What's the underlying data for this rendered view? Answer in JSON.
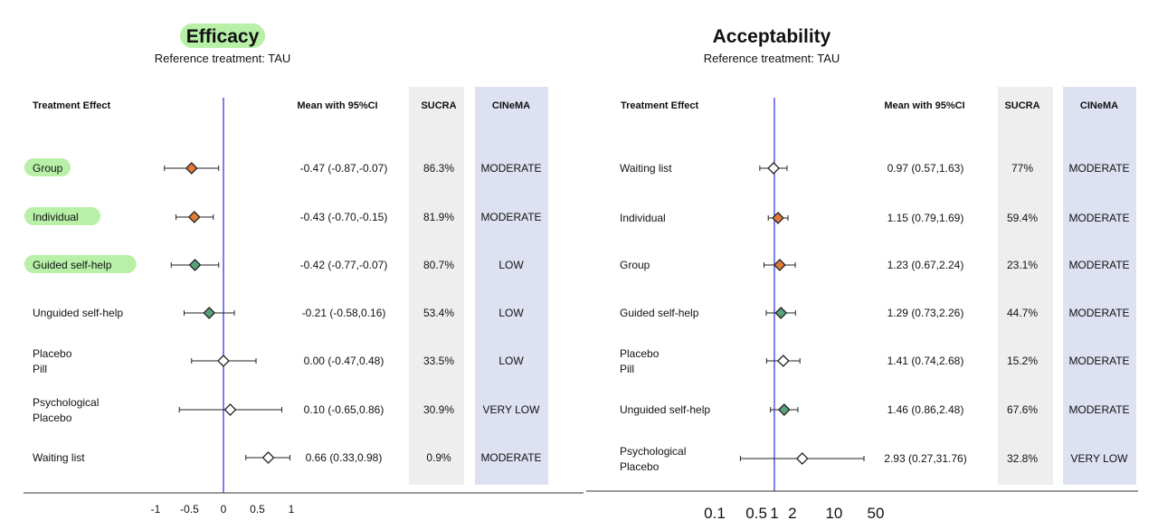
{
  "chart_data": [
    {
      "type": "forest",
      "title": "Efficacy",
      "subtitle": "Reference treatment: TAU",
      "headers": {
        "label": "Treatment Effect",
        "estimate": "Mean with 95%CI",
        "sucra": "SUCRA",
        "cinema": "CINeMA"
      },
      "scale": "linear",
      "xlim": [
        -1.2,
        1.0
      ],
      "ticks": [
        "-1",
        "-0.5",
        "0",
        "0.5",
        "1"
      ],
      "tick_values": [
        -1,
        -0.5,
        0,
        0.5,
        1
      ],
      "reference_line": 0,
      "rows": [
        {
          "label": [
            "Group"
          ],
          "highlight": true,
          "mean": -0.47,
          "lo": -0.87,
          "hi": -0.07,
          "text": "-0.47 (-0.87,-0.07)",
          "sucra": "86.3%",
          "cinema": "MODERATE",
          "color": "#e07b39"
        },
        {
          "label": [
            "Individual"
          ],
          "highlight": true,
          "mean": -0.43,
          "lo": -0.7,
          "hi": -0.15,
          "text": "-0.43 (-0.70,-0.15)",
          "sucra": "81.9%",
          "cinema": "MODERATE",
          "color": "#e07b39"
        },
        {
          "label": [
            "Guided self-help"
          ],
          "highlight": true,
          "mean": -0.42,
          "lo": -0.77,
          "hi": -0.07,
          "text": "-0.42 (-0.77,-0.07)",
          "sucra": "80.7%",
          "cinema": "LOW",
          "color": "#5aa37a"
        },
        {
          "label": [
            "Unguided self-help"
          ],
          "highlight": false,
          "mean": -0.21,
          "lo": -0.58,
          "hi": 0.16,
          "text": "-0.21 (-0.58,0.16)",
          "sucra": "53.4%",
          "cinema": "LOW",
          "color": "#5aa37a"
        },
        {
          "label": [
            "Placebo",
            "Pill"
          ],
          "highlight": false,
          "mean": 0.0,
          "lo": -0.47,
          "hi": 0.48,
          "text": "0.00 (-0.47,0.48)",
          "sucra": "33.5%",
          "cinema": "LOW",
          "color": "#ffffff"
        },
        {
          "label": [
            "Psychological",
            "Placebo"
          ],
          "highlight": false,
          "mean": 0.1,
          "lo": -0.65,
          "hi": 0.86,
          "text": "0.10 (-0.65,0.86)",
          "sucra": "30.9%",
          "cinema": "VERY LOW",
          "color": "#ffffff"
        },
        {
          "label": [
            "Waiting list"
          ],
          "highlight": false,
          "mean": 0.66,
          "lo": 0.33,
          "hi": 0.98,
          "text": "0.66 (0.33,0.98)",
          "sucra": "0.9%",
          "cinema": "MODERATE",
          "color": "#ffffff"
        }
      ]
    },
    {
      "type": "forest",
      "title": "Acceptability",
      "subtitle": "Reference treatment: TAU",
      "headers": {
        "label": "Treatment Effect",
        "estimate": "Mean with 95%CI",
        "sucra": "SUCRA",
        "cinema": "CINeMA"
      },
      "scale": "log",
      "xlim": [
        0.1,
        50
      ],
      "ticks": [
        "0.1",
        "0.5",
        "1",
        "2",
        "10",
        "50"
      ],
      "tick_values": [
        0.1,
        0.5,
        1,
        2,
        10,
        50
      ],
      "reference_line": 1,
      "rows": [
        {
          "label": [
            "Waiting list"
          ],
          "highlight": false,
          "mean": 0.97,
          "lo": 0.57,
          "hi": 1.63,
          "text": "0.97 (0.57,1.63)",
          "sucra": "77%",
          "cinema": "MODERATE",
          "color": "#ffffff"
        },
        {
          "label": [
            "Individual"
          ],
          "highlight": false,
          "mean": 1.15,
          "lo": 0.79,
          "hi": 1.69,
          "text": "1.15 (0.79,1.69)",
          "sucra": "59.4%",
          "cinema": "MODERATE",
          "color": "#e07b39"
        },
        {
          "label": [
            "Group"
          ],
          "highlight": false,
          "mean": 1.23,
          "lo": 0.67,
          "hi": 2.24,
          "text": "1.23 (0.67,2.24)",
          "sucra": "23.1%",
          "cinema": "MODERATE",
          "color": "#e07b39"
        },
        {
          "label": [
            "Guided self-help"
          ],
          "highlight": false,
          "mean": 1.29,
          "lo": 0.73,
          "hi": 2.26,
          "text": "1.29 (0.73,2.26)",
          "sucra": "44.7%",
          "cinema": "MODERATE",
          "color": "#5aa37a"
        },
        {
          "label": [
            "Placebo",
            "Pill"
          ],
          "highlight": false,
          "mean": 1.41,
          "lo": 0.74,
          "hi": 2.68,
          "text": "1.41 (0.74,2.68)",
          "sucra": "15.2%",
          "cinema": "MODERATE",
          "color": "#ffffff"
        },
        {
          "label": [
            "Unguided self-help"
          ],
          "highlight": false,
          "mean": 1.46,
          "lo": 0.86,
          "hi": 2.48,
          "text": "1.46 (0.86,2.48)",
          "sucra": "67.6%",
          "cinema": "MODERATE",
          "color": "#5aa37a"
        },
        {
          "label": [
            "Psychological",
            "Placebo"
          ],
          "highlight": false,
          "mean": 2.93,
          "lo": 0.27,
          "hi": 31.76,
          "text": "2.93 (0.27,31.76)",
          "sucra": "32.8%",
          "cinema": "VERY LOW",
          "color": "#ffffff"
        }
      ]
    }
  ],
  "colors": {
    "reference_line": "#3a3ae0",
    "highlight_pill": "#b8f0a8",
    "sucra_column": "#eeeeee",
    "cinema_column": "#dde1f2",
    "orange_marker": "#e07b39",
    "green_marker": "#5aa37a"
  }
}
